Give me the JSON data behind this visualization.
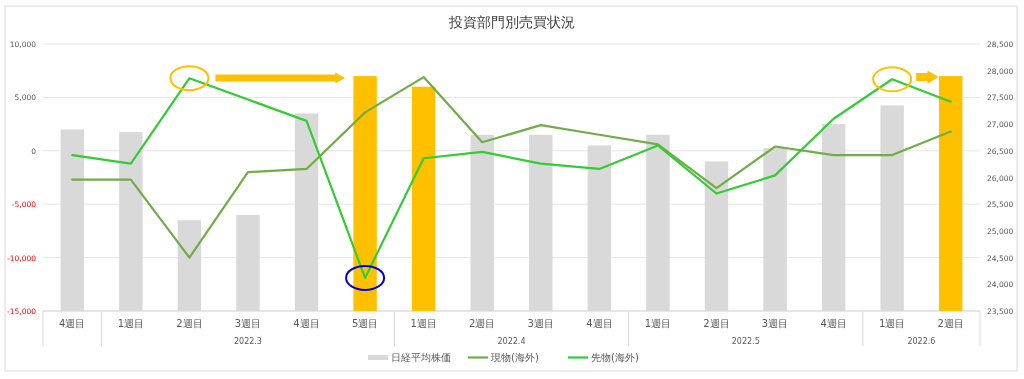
{
  "chart_data": {
    "type": "bar",
    "title": "投資部門別売買状況",
    "categories": [
      "4週目",
      "1週目",
      "2週目",
      "3週目",
      "4週目",
      "5週目",
      "1週目",
      "2週目",
      "3週目",
      "4週目",
      "1週目",
      "2週目",
      "3週目",
      "4週目",
      "1週目",
      "2週目"
    ],
    "series": [
      {
        "name": "日経平均株価",
        "axis": "y2",
        "color": "#d9d9d9",
        "colors": [
          "#d9d9d9",
          "#d9d9d9",
          "#d9d9d9",
          "#d9d9d9",
          "#d9d9d9",
          "#ffc000",
          "#ffc000",
          "#d9d9d9",
          "#d9d9d9",
          "#d9d9d9",
          "#d9d9d9",
          "#d9d9d9",
          "#d9d9d9",
          "#d9d9d9",
          "#d9d9d9",
          "#ffc000"
        ],
        "values": [
          26900,
          26850,
          25200,
          25300,
          27200,
          27900,
          27700,
          26800,
          26800,
          26600,
          26800,
          26300,
          26550,
          27000,
          27350,
          27900
        ]
      },
      {
        "name": "現物(海外)",
        "type": "line",
        "axis": "y",
        "color": "#70ad47",
        "values": [
          -2700,
          -2700,
          -10000,
          -2000,
          -1700,
          3600,
          6900,
          800,
          2400,
          1500,
          600,
          -3500,
          400,
          -400,
          -400,
          1800
        ]
      },
      {
        "name": "先物(海外)",
        "type": "line",
        "axis": "y",
        "color": "#33cc33",
        "values": [
          -400,
          -1200,
          6800,
          4800,
          2800,
          -11900,
          -700,
          -100,
          -1200,
          -1700,
          500,
          -4000,
          -2300,
          3000,
          6700,
          4600
        ]
      }
    ],
    "ylim": [
      -15000,
      10000
    ],
    "yticks": [
      {
        "value": -15000,
        "label": "-15,000"
      },
      {
        "value": -10000,
        "label": "-10,000"
      },
      {
        "value": -5000,
        "label": "-5,000"
      },
      0,
      {
        "value": 5000,
        "label": "5,000"
      },
      {
        "value": 10000,
        "label": "10,000"
      }
    ],
    "y2lim": [
      23500,
      28500
    ],
    "y2ticks": [
      {
        "value": 23500,
        "label": "23,500"
      },
      {
        "value": 24000,
        "label": "24,000"
      },
      {
        "value": 24500,
        "label": "24,500"
      },
      {
        "value": 25000,
        "label": "25,000"
      },
      {
        "value": 25500,
        "label": "25,500"
      },
      {
        "value": 26000,
        "label": "26,000"
      },
      {
        "value": 26500,
        "label": "26,500"
      },
      {
        "value": 27000,
        "label": "27,000"
      },
      {
        "value": 27500,
        "label": "27,500"
      },
      {
        "value": 28000,
        "label": "28,000"
      },
      {
        "value": 28500,
        "label": "28,500"
      }
    ],
    "annotations": [
      "2022.3",
      "2022.4",
      "2022.5",
      "2022.6"
    ],
    "grid": "y",
    "legend": "bottom"
  }
}
